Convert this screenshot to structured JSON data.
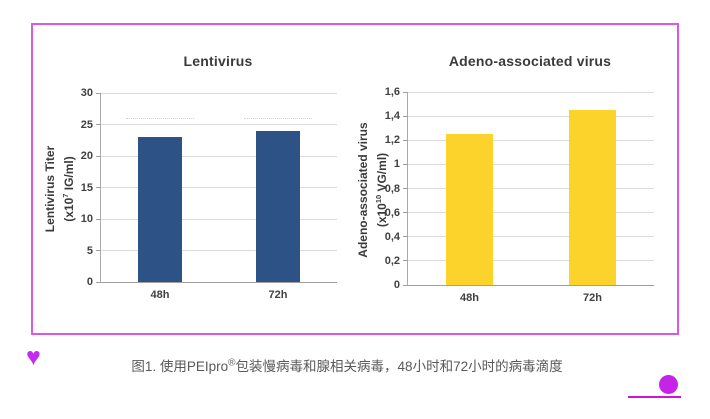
{
  "frame": {
    "border_color": "#d85ae2"
  },
  "chart_data": [
    {
      "type": "bar",
      "title": "Lentivirus",
      "categories": [
        "48h",
        "72h"
      ],
      "values": [
        23,
        24
      ],
      "ylabel": "Lentivirus Titer (x10^7 IG/ml)",
      "ylabel_line1": "Lentivirus Titer",
      "ylabel_unit_pre": "(x10",
      "ylabel_unit_sup": "7",
      "ylabel_unit_post": " IG/ml)",
      "xlabel": "",
      "ylim": [
        0,
        30
      ],
      "yticks": [
        {
          "value": 0,
          "label": "0"
        },
        {
          "value": 5,
          "label": "5"
        },
        {
          "value": 10,
          "label": "10"
        },
        {
          "value": 15,
          "label": "15"
        },
        {
          "value": 20,
          "label": "20"
        },
        {
          "value": 25,
          "label": "25"
        },
        {
          "value": 30,
          "label": "30"
        }
      ],
      "grid": true,
      "legend": false,
      "bar_color": "#2d5286",
      "dashed_guide_value": 26
    },
    {
      "type": "bar",
      "title": "Adeno-associated virus",
      "categories": [
        "48h",
        "72h"
      ],
      "values": [
        1.25,
        1.45
      ],
      "ylabel": "Adeno-associated virus (x10^10 VG/ml)",
      "ylabel_line1": "Adeno-associated virus",
      "ylabel_unit_pre": "(x10",
      "ylabel_unit_sup": "10",
      "ylabel_unit_post": " VG/ml)",
      "xlabel": "",
      "ylim": [
        0,
        1.6
      ],
      "yticks": [
        {
          "value": 0,
          "label": "0"
        },
        {
          "value": 0.2,
          "label": "0,2"
        },
        {
          "value": 0.4,
          "label": "0,4"
        },
        {
          "value": 0.6,
          "label": "0,6"
        },
        {
          "value": 0.8,
          "label": "0,8"
        },
        {
          "value": 1,
          "label": "1"
        },
        {
          "value": 1.2,
          "label": "1,2"
        },
        {
          "value": 1.4,
          "label": "1,4"
        },
        {
          "value": 1.6,
          "label": "1,6"
        }
      ],
      "grid": true,
      "legend": false,
      "bar_color": "#fbd32b",
      "dashed_guide_value": null
    }
  ],
  "caption": {
    "pre": "图1. 使用PEIpro",
    "sup": "®",
    "post": "包装慢病毒和腺相关病毒，48小时和72小时的病毒滴度"
  },
  "decorations": {
    "heart_glyph": "♥",
    "heart_color": "#c32bef",
    "dot_color": "#c524e8",
    "underline_color": "#d313d3"
  }
}
